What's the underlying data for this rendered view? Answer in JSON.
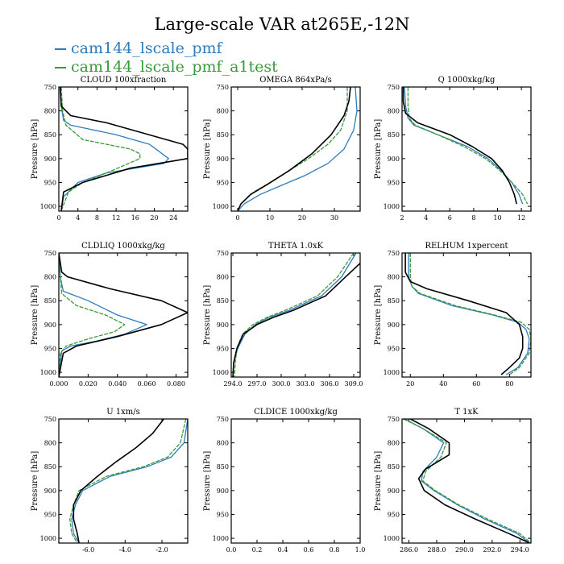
{
  "figure": {
    "title": "Large-scale VAR at265E,-12N",
    "legend": [
      {
        "label": "cam144_lscale_pmf",
        "color": "#2d7cbd"
      },
      {
        "label": "cam144_lscale_pmf_a1test",
        "color": "#3a9a3a"
      }
    ],
    "black_series_color": "#000000",
    "ylabel": "Pressure [hPa]"
  },
  "chart_data": [
    {
      "type": "line",
      "title": "CLOUD 100xfraction",
      "ylabel": "Pressure [hPa]",
      "xlim": [
        0,
        27
      ],
      "ylim": [
        1010,
        750
      ],
      "xticks": [
        0,
        4,
        8,
        12,
        16,
        20,
        24
      ],
      "xtick_labels": [
        "0",
        "4",
        "8",
        "12",
        "16",
        "20",
        "24"
      ],
      "yticks": [
        750,
        800,
        850,
        900,
        950,
        1000
      ],
      "ytick_labels": [
        "750",
        "800",
        "850",
        "900",
        "950",
        "1000"
      ],
      "series": [
        {
          "color": "#2d7cbd",
          "x": [
            0.3,
            0.5,
            1.0,
            2.5,
            12,
            19,
            23,
            22,
            10,
            4,
            1,
            0.5
          ],
          "y": [
            750,
            790,
            820,
            830,
            850,
            870,
            900,
            910,
            930,
            950,
            980,
            1010
          ]
        },
        {
          "color": "#3a9a3a",
          "x": [
            0.5,
            0.8,
            1.5,
            5,
            10,
            15,
            17,
            17,
            10,
            5,
            2,
            0.5
          ],
          "y": [
            750,
            800,
            830,
            860,
            870,
            880,
            890,
            900,
            930,
            950,
            970,
            1010
          ]
        },
        {
          "color": "#000000",
          "x": [
            0.3,
            0.5,
            2.5,
            10,
            26,
            27,
            27,
            15,
            5,
            1,
            0.5
          ],
          "y": [
            750,
            790,
            810,
            825,
            870,
            880,
            900,
            920,
            950,
            970,
            1010
          ]
        }
      ]
    },
    {
      "type": "line",
      "title": "OMEGA 864xPa/s",
      "ylabel": "Pressure [hPa]",
      "xlim": [
        -2,
        38
      ],
      "ylim": [
        1010,
        750
      ],
      "xticks": [
        0,
        10,
        20,
        30
      ],
      "xtick_labels": [
        "0",
        "10",
        "20",
        "30"
      ],
      "yticks": [
        750,
        800,
        850,
        900,
        950,
        1000
      ],
      "ytick_labels": [
        "750",
        "800",
        "850",
        "900",
        "950",
        "1000"
      ],
      "series": [
        {
          "color": "#2d7cbd",
          "x": [
            36.5,
            37,
            36,
            33,
            28,
            21,
            14,
            7,
            2,
            0
          ],
          "y": [
            750,
            800,
            840,
            880,
            910,
            935,
            955,
            975,
            995,
            1010
          ]
        },
        {
          "color": "#3a9a3a",
          "x": [
            34,
            34,
            32,
            28,
            22,
            16,
            10,
            5,
            1,
            0
          ],
          "y": [
            750,
            800,
            840,
            870,
            900,
            925,
            950,
            970,
            995,
            1010
          ]
        },
        {
          "color": "#000000",
          "x": [
            35,
            34.5,
            33,
            29,
            23,
            16,
            9,
            4,
            1,
            0
          ],
          "y": [
            750,
            780,
            810,
            850,
            890,
            925,
            955,
            975,
            995,
            1010
          ]
        }
      ]
    },
    {
      "type": "line",
      "title": "Q 1000xkg/kg",
      "ylabel": "Pressure [hPa]",
      "xlim": [
        2,
        12.8
      ],
      "ylim": [
        1010,
        750
      ],
      "xticks": [
        2,
        4,
        6,
        8,
        10,
        12
      ],
      "xtick_labels": [
        "2",
        "4",
        "6",
        "8",
        "10",
        "12"
      ],
      "yticks": [
        750,
        800,
        850,
        900,
        950,
        1000
      ],
      "ytick_labels": [
        "750",
        "800",
        "850",
        "900",
        "950",
        "1000"
      ],
      "series": [
        {
          "color": "#2d7cbd",
          "x": [
            2.2,
            2.3,
            2.5,
            3,
            5,
            7.5,
            9.2,
            10.3,
            11.2,
            11.8,
            12.1
          ],
          "y": [
            750,
            790,
            815,
            830,
            850,
            875,
            900,
            925,
            950,
            975,
            995
          ]
        },
        {
          "color": "#3a9a3a",
          "x": [
            2.5,
            2.5,
            2.6,
            3.1,
            5,
            7.2,
            9,
            10.2,
            11.2,
            12.1,
            12.5
          ],
          "y": [
            750,
            790,
            815,
            830,
            850,
            875,
            900,
            925,
            950,
            975,
            995
          ]
        },
        {
          "color": "#000000",
          "x": [
            2.1,
            2.1,
            2.3,
            3.3,
            6,
            7.9,
            9.5,
            10.4,
            11.0,
            11.4,
            11.6
          ],
          "y": [
            750,
            780,
            805,
            825,
            850,
            875,
            900,
            925,
            950,
            975,
            995
          ]
        }
      ]
    },
    {
      "type": "line",
      "title": "CLDLIQ 1000xkg/kg",
      "ylabel": "Pressure [hPa]",
      "xlim": [
        0,
        0.088
      ],
      "ylim": [
        1010,
        750
      ],
      "xticks": [
        0,
        0.02,
        0.04,
        0.06,
        0.08
      ],
      "xtick_labels": [
        "0.000",
        "0.020",
        "0.040",
        "0.060",
        "0.080"
      ],
      "yticks": [
        750,
        800,
        850,
        900,
        950,
        1000
      ],
      "ytick_labels": [
        "750",
        "800",
        "850",
        "900",
        "950",
        "1000"
      ],
      "series": [
        {
          "color": "#2d7cbd",
          "x": [
            0,
            0.001,
            0.003,
            0.02,
            0.04,
            0.06,
            0.045,
            0.025,
            0.008,
            0.002,
            0
          ],
          "y": [
            750,
            800,
            830,
            850,
            880,
            900,
            920,
            935,
            945,
            955,
            1010
          ]
        },
        {
          "color": "#3a9a3a",
          "x": [
            0,
            0.001,
            0.002,
            0.012,
            0.032,
            0.045,
            0.038,
            0.02,
            0.005,
            0.001,
            0
          ],
          "y": [
            750,
            800,
            835,
            860,
            880,
            900,
            915,
            930,
            945,
            960,
            1010
          ]
        },
        {
          "color": "#000000",
          "x": [
            0,
            0.002,
            0.006,
            0.035,
            0.07,
            0.088,
            0.07,
            0.04,
            0.012,
            0.003,
            0
          ],
          "y": [
            750,
            790,
            800,
            825,
            850,
            875,
            900,
            925,
            945,
            960,
            1010
          ]
        }
      ]
    },
    {
      "type": "line",
      "title": "THETA 1.0xK",
      "ylabel": "Pressure [hPa]",
      "xlim": [
        293.8,
        309.8
      ],
      "ylim": [
        1010,
        750
      ],
      "xticks": [
        294,
        297,
        300,
        303,
        306,
        309
      ],
      "xtick_labels": [
        "294.0",
        "297.0",
        "300.0",
        "303.0",
        "306.0",
        "309.0"
      ],
      "yticks": [
        750,
        800,
        850,
        900,
        950,
        1000
      ],
      "ytick_labels": [
        "750",
        "800",
        "850",
        "900",
        "950",
        "1000"
      ],
      "series": [
        {
          "color": "#2d7cbd",
          "x": [
            309.3,
            307.5,
            305,
            301,
            298.5,
            296.8,
            295.5,
            294.6,
            294.1,
            294.0
          ],
          "y": [
            750,
            800,
            840,
            870,
            885,
            900,
            920,
            950,
            980,
            1010
          ]
        },
        {
          "color": "#3a9a3a",
          "x": [
            309,
            307,
            304.5,
            300.5,
            298.2,
            296.5,
            295.2,
            294.5,
            294.3,
            294.2
          ],
          "y": [
            750,
            800,
            840,
            870,
            885,
            900,
            920,
            950,
            980,
            1010
          ]
        },
        {
          "color": "#000000",
          "x": [
            309.9,
            308,
            305.5,
            301.5,
            299,
            297,
            295.3,
            294.5,
            294.1,
            294.0
          ],
          "y": [
            770,
            800,
            840,
            870,
            885,
            900,
            920,
            950,
            980,
            1010
          ]
        }
      ]
    },
    {
      "type": "line",
      "title": "RELHUM 1xpercent",
      "ylabel": "Pressure [hPa]",
      "xlim": [
        15,
        93
      ],
      "ylim": [
        1010,
        750
      ],
      "xticks": [
        20,
        40,
        60,
        80
      ],
      "xtick_labels": [
        "20",
        "40",
        "60",
        "80"
      ],
      "yticks": [
        750,
        800,
        850,
        900,
        950,
        1000
      ],
      "ytick_labels": [
        "750",
        "800",
        "850",
        "900",
        "950",
        "1000"
      ],
      "series": [
        {
          "color": "#2d7cbd",
          "x": [
            19,
            19,
            21,
            25,
            45,
            70,
            85,
            90,
            92,
            91,
            85,
            78
          ],
          "y": [
            750,
            800,
            820,
            835,
            860,
            880,
            895,
            910,
            930,
            960,
            990,
            1005
          ]
        },
        {
          "color": "#3a9a3a",
          "x": [
            20,
            20,
            21,
            26,
            47,
            71,
            87,
            92,
            93,
            92,
            86,
            80
          ],
          "y": [
            750,
            800,
            820,
            835,
            860,
            880,
            895,
            910,
            930,
            960,
            990,
            1005
          ]
        },
        {
          "color": "#000000",
          "x": [
            17,
            17,
            20,
            30,
            55,
            78,
            86,
            88,
            88,
            86,
            80,
            75
          ],
          "y": [
            750,
            790,
            810,
            825,
            850,
            875,
            900,
            925,
            950,
            970,
            990,
            1005
          ]
        }
      ]
    },
    {
      "type": "line",
      "title": "U 1xm/s",
      "ylabel": "Pressure [hPa]",
      "xlim": [
        -7.6,
        -0.6
      ],
      "ylim": [
        1010,
        750
      ],
      "xticks": [
        -6,
        -4,
        -2
      ],
      "xtick_labels": [
        "-6.0",
        "-4.0",
        "-2.0"
      ],
      "yticks": [
        750,
        800,
        850,
        900,
        950,
        1000
      ],
      "ytick_labels": [
        "750",
        "800",
        "850",
        "900",
        "950",
        "1000"
      ],
      "series": [
        {
          "color": "#2d7cbd",
          "x": [
            -0.6,
            -0.8,
            -1.5,
            -2.8,
            -4.8,
            -6.3,
            -6.7,
            -6.9,
            -6.8,
            -6.5
          ],
          "y": [
            750,
            800,
            830,
            850,
            870,
            900,
            930,
            960,
            990,
            1010
          ]
        },
        {
          "color": "#3a9a3a",
          "x": [
            -0.7,
            -1.0,
            -1.7,
            -3,
            -5,
            -6.5,
            -6.8,
            -7,
            -6.9,
            -6.6
          ],
          "y": [
            750,
            800,
            830,
            850,
            870,
            900,
            930,
            960,
            990,
            1010
          ]
        },
        {
          "color": "#000000",
          "x": [
            -1.9,
            -2.5,
            -3.4,
            -4.5,
            -5.5,
            -6.4,
            -6.8,
            -6.8,
            -6.6,
            -6.5
          ],
          "y": [
            750,
            780,
            810,
            840,
            870,
            900,
            930,
            960,
            990,
            1010
          ]
        }
      ]
    },
    {
      "type": "line",
      "title": "CLDICE 1000xkg/kg",
      "ylabel": "Pressure [hPa]",
      "xlim": [
        0,
        1
      ],
      "ylim": [
        1010,
        750
      ],
      "xticks": [
        0,
        0.2,
        0.4,
        0.6,
        0.8,
        1.0
      ],
      "xtick_labels": [
        "0.0",
        "0.2",
        "0.4",
        "0.6",
        "0.8",
        "1.0"
      ],
      "yticks": [
        750,
        800,
        850,
        900,
        950,
        1000
      ],
      "ytick_labels": [
        "750",
        "800",
        "850",
        "900",
        "950",
        "1000"
      ],
      "series": []
    },
    {
      "type": "line",
      "title": "T 1xK",
      "ylabel": "Pressure [hPa]",
      "xlim": [
        285.5,
        294.8
      ],
      "ylim": [
        1010,
        750
      ],
      "xticks": [
        286,
        288,
        290,
        292,
        294
      ],
      "xtick_labels": [
        "286.0",
        "288.0",
        "290.0",
        "292.0",
        "294.0"
      ],
      "yticks": [
        750,
        800,
        850,
        900,
        950,
        1000
      ],
      "ytick_labels": [
        "750",
        "800",
        "850",
        "900",
        "950",
        "1000"
      ],
      "series": [
        {
          "color": "#2d7cbd",
          "x": [
            285.7,
            287,
            288.5,
            288.0,
            287.0,
            286.9,
            287.8,
            289.5,
            291.5,
            293.8,
            294.7
          ],
          "y": [
            750,
            770,
            800,
            830,
            860,
            880,
            900,
            930,
            960,
            990,
            1010
          ]
        },
        {
          "color": "#3a9a3a",
          "x": [
            285.6,
            287,
            288.7,
            288.3,
            287.2,
            287.0,
            287.9,
            289.6,
            291.7,
            294.0,
            294.8
          ],
          "y": [
            750,
            770,
            800,
            830,
            860,
            880,
            900,
            930,
            960,
            990,
            1010
          ]
        },
        {
          "color": "#000000",
          "x": [
            286.1,
            287.4,
            288.9,
            288.9,
            287.2,
            286.7,
            287.1,
            288.6,
            290.8,
            293.2,
            294.7
          ],
          "y": [
            750,
            770,
            800,
            825,
            855,
            875,
            900,
            930,
            960,
            990,
            1010
          ]
        }
      ]
    }
  ]
}
